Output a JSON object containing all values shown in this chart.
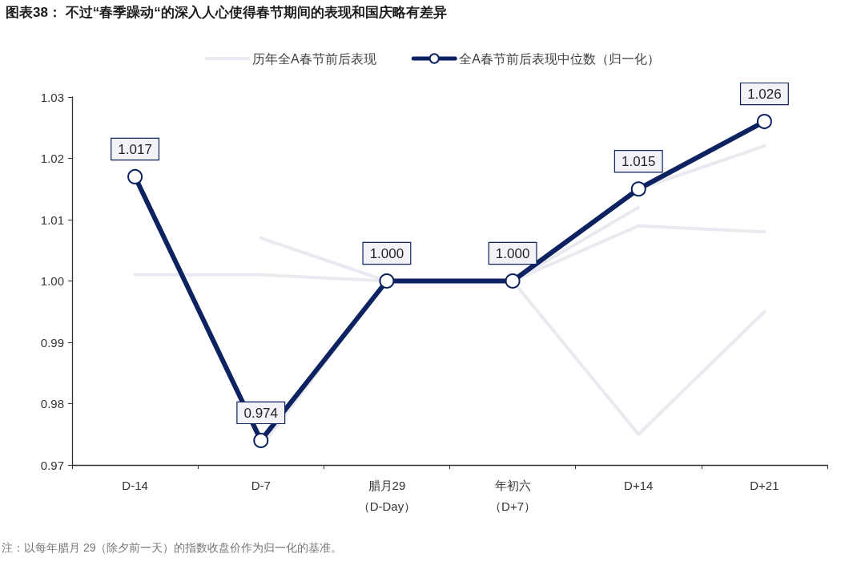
{
  "chart_data": {
    "type": "line",
    "title": "图表38： 不过“春季躁动“的深入人心使得春节期间的表现和国庆略有差异",
    "categories": [
      "D-14",
      "D-7",
      "腊月29（D-Day）",
      "年初六（D+7）",
      "D+14",
      "D+21"
    ],
    "series": [
      {
        "name": "历年全A春节前后表现",
        "color": "#e9eaf0",
        "values": [
          1.001,
          1.001,
          1.0,
          1.0,
          1.009,
          1.008
        ]
      },
      {
        "color": "#e9eaf0",
        "values": [
          null,
          1.007,
          1.0,
          1.0,
          1.015,
          1.022
        ]
      },
      {
        "color": "#e9eaf0",
        "values": [
          null,
          0.973,
          1.0,
          1.0,
          0.975,
          0.995
        ]
      },
      {
        "color": "#e9eaf0",
        "values": [
          null,
          null,
          1.0,
          1.0,
          1.012,
          null
        ]
      },
      {
        "name": "全A春节前后表现中位数（归一化）",
        "color": "#0d2260",
        "marker": "circle",
        "values": [
          1.017,
          0.974,
          1.0,
          1.0,
          1.015,
          1.026
        ],
        "value_labels": [
          "1.017",
          "0.974",
          "1.000",
          "1.000",
          "1.015",
          "1.026"
        ]
      }
    ],
    "ylim": [
      0.97,
      1.03
    ],
    "yticks": [
      0.97,
      0.98,
      0.99,
      {
        "value": 1,
        "label": "1.00"
      },
      1.01,
      1.02,
      1.03
    ],
    "legend": "top",
    "line_style": "solid",
    "annotations": [
      "注：以每年腊月 29（除夕前一天）的指数收盘价作为归一化的基准。"
    ]
  }
}
